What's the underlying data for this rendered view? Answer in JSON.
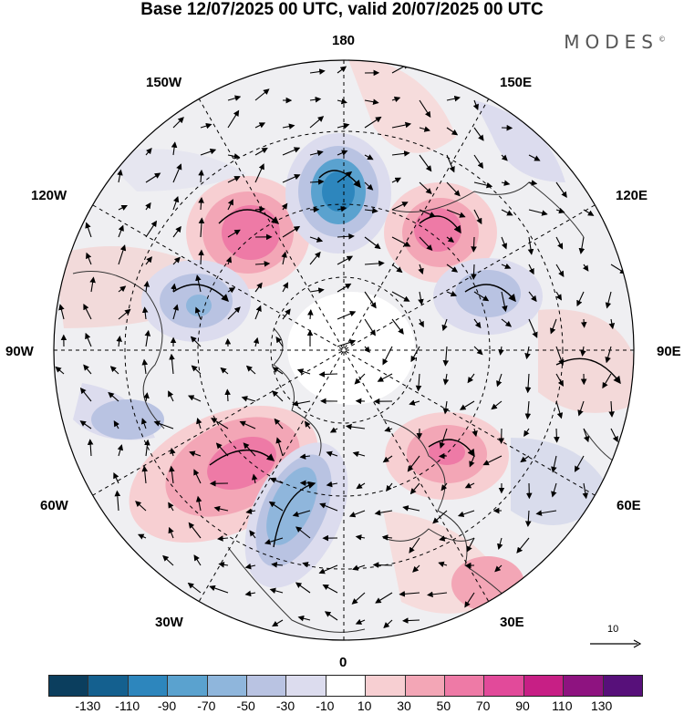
{
  "title": "Base 12/07/2025 00 UTC, valid 20/07/2025 00 UTC",
  "brand": "MODES",
  "brand_mark": "©",
  "longitudes": {
    "top": "180",
    "top_right": "150E",
    "right_upper": "120E",
    "right": "90E",
    "right_lower": "60E",
    "bottom_right": "30E",
    "bottom": "0",
    "bottom_left": "30W",
    "left_lower": "60W",
    "left": "90W",
    "left_upper": "120W",
    "top_left": "150W"
  },
  "reference_vector": "10",
  "colorbar": {
    "colors": [
      "#0b3e5e",
      "#14608f",
      "#2d86bd",
      "#5aa2cf",
      "#8fb6dc",
      "#b9c3e2",
      "#dcdcee",
      "#ffffff",
      "#f7cfd2",
      "#f3a6b6",
      "#ee7aa6",
      "#e24a9a",
      "#c71f85",
      "#8e1380",
      "#57107a"
    ],
    "ticks": [
      "-130",
      "-110",
      "-90",
      "-70",
      "-50",
      "-30",
      "-10",
      "10",
      "30",
      "50",
      "70",
      "90",
      "110",
      "130"
    ]
  },
  "map_colors": {
    "ocean_grey": "#ececec",
    "land_line": "#333333",
    "grid": "#000000"
  }
}
